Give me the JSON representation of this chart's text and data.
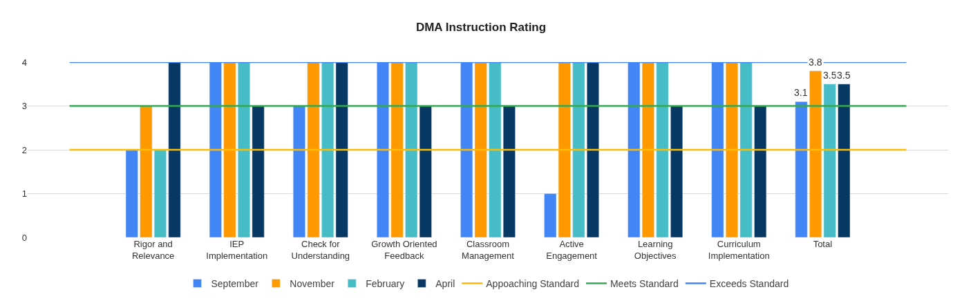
{
  "chart_data": {
    "type": "bar",
    "title": "DMA Instruction Rating",
    "categories": [
      null,
      "Rigor and\nRelevance",
      "IEP\nImplementation",
      "Check for\nUnderstanding",
      "Growth Oriented\nFeedback",
      "Classroom\nManagement",
      "Active\nEngagement",
      "Learning\nObjectives",
      "Curriculum\nImplementation",
      "Total",
      null
    ],
    "series": [
      {
        "name": "September",
        "color": "#4285f4",
        "values": [
          null,
          2,
          4,
          3,
          4,
          4,
          1,
          4,
          4,
          3.1,
          null
        ],
        "value_labels": [
          null,
          null,
          null,
          null,
          null,
          null,
          null,
          null,
          null,
          "3.1",
          null
        ]
      },
      {
        "name": "November",
        "color": "#ff9900",
        "values": [
          null,
          3,
          4,
          4,
          4,
          4,
          4,
          4,
          4,
          3.8,
          null
        ],
        "value_labels": [
          null,
          null,
          null,
          null,
          null,
          null,
          null,
          null,
          null,
          "3.8",
          null
        ]
      },
      {
        "name": "February",
        "color": "#46bdc6",
        "values": [
          null,
          2,
          4,
          4,
          4,
          4,
          4,
          4,
          4,
          3.5,
          null
        ],
        "value_labels": [
          null,
          null,
          null,
          null,
          null,
          null,
          null,
          null,
          null,
          "3.5",
          null
        ]
      },
      {
        "name": "April",
        "color": "#073763",
        "values": [
          null,
          4,
          3,
          4,
          3,
          3,
          4,
          3,
          3,
          3.5,
          null
        ],
        "value_labels": [
          null,
          null,
          null,
          null,
          null,
          null,
          null,
          null,
          null,
          "3.5",
          null
        ]
      },
      {
        "name": "Appoaching Standard",
        "type": "line",
        "color": "#fbbc04",
        "values": [
          2,
          2,
          2,
          2,
          2,
          2,
          2,
          2,
          2,
          2,
          2
        ]
      },
      {
        "name": "Meets Standard",
        "type": "line",
        "color": "#34a853",
        "values": [
          3,
          3,
          3,
          3,
          3,
          3,
          3,
          3,
          3,
          3,
          3
        ]
      },
      {
        "name": "Exceeds Standard",
        "type": "line",
        "color": "#4285f4",
        "values": [
          4,
          4,
          4,
          4,
          4,
          4,
          4,
          4,
          4,
          4,
          4
        ]
      }
    ],
    "ylim": [
      0,
      4
    ],
    "yticks": [
      0,
      1,
      2,
      3,
      4
    ],
    "grid": "y",
    "legend": "bottom",
    "marker": "none",
    "line_style": "solid"
  }
}
